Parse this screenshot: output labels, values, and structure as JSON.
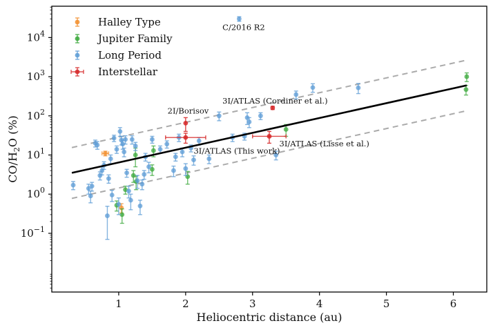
{
  "chart_data": {
    "type": "scatter",
    "xlabel": "Heliocentric distance (au)",
    "ylabel": {
      "pre": "CO/H",
      "sub": "2",
      "post": "O (%)"
    },
    "xlim": [
      0.0,
      6.5
    ],
    "ylim_log10": [
      -2.5,
      4.8
    ],
    "yscale": "log",
    "xticks": [
      1,
      2,
      3,
      4,
      5,
      6
    ],
    "yticks": [
      {
        "exp": -1,
        "base": "10",
        "label": "−1"
      },
      {
        "exp": 0,
        "base": "10",
        "label": "0"
      },
      {
        "exp": 1,
        "base": "10",
        "label": "1"
      },
      {
        "exp": 2,
        "base": "10",
        "label": "2"
      },
      {
        "exp": 3,
        "base": "10",
        "label": "3"
      },
      {
        "exp": 4,
        "base": "10",
        "label": "4"
      }
    ],
    "legend_position": "top-left",
    "series": [
      {
        "name": "Halley Type",
        "color": "#f28e2b",
        "points": [
          [
            0.8,
            11.0,
            1.5,
            0.05
          ],
          [
            1.04,
            0.45,
            0.12,
            0.0
          ]
        ]
      },
      {
        "name": "Jupiter Family",
        "color": "#3aa83a",
        "points": [
          [
            0.97,
            0.52,
            0.15,
            0.0
          ],
          [
            1.05,
            0.3,
            0.12,
            0.0
          ],
          [
            1.1,
            1.3,
            0.3,
            0.0
          ],
          [
            1.22,
            3.0,
            1.0,
            0.0
          ],
          [
            1.25,
            10.0,
            5.0,
            0.0
          ],
          [
            1.26,
            2.1,
            0.8,
            0.0
          ],
          [
            1.5,
            4.3,
            1.3,
            0.0
          ],
          [
            1.52,
            13.0,
            4.0,
            0.0
          ],
          [
            2.03,
            2.8,
            1.0,
            0.0
          ],
          [
            3.5,
            45.0,
            15.0,
            0.0
          ],
          [
            6.2,
            1000.0,
            250.0,
            0.0
          ],
          [
            6.19,
            470.0,
            130.0,
            0.0
          ]
        ]
      },
      {
        "name": "Long Period",
        "color": "#5b9bd5",
        "points": [
          [
            0.32,
            1.7,
            0.4,
            0.0
          ],
          [
            0.55,
            1.4,
            0.4,
            0.0
          ],
          [
            0.58,
            0.9,
            0.3,
            0.0
          ],
          [
            0.6,
            1.6,
            0.4,
            0.0
          ],
          [
            0.65,
            20.0,
            4.0,
            0.0
          ],
          [
            0.68,
            18.0,
            4.0,
            0.0
          ],
          [
            0.72,
            3.0,
            0.7,
            0.0
          ],
          [
            0.75,
            4.0,
            0.9,
            0.0
          ],
          [
            0.78,
            5.5,
            1.2,
            0.0
          ],
          [
            0.83,
            0.28,
            0.21,
            0.0
          ],
          [
            0.85,
            2.5,
            0.6,
            0.0
          ],
          [
            0.88,
            8.0,
            2.0,
            0.0
          ],
          [
            0.9,
            0.95,
            0.3,
            0.0
          ],
          [
            0.93,
            27.0,
            5.0,
            0.0
          ],
          [
            0.97,
            14.0,
            3.0,
            0.0
          ],
          [
            1.0,
            0.55,
            0.25,
            0.0
          ],
          [
            1.02,
            40.0,
            10.0,
            0.0
          ],
          [
            1.04,
            24.0,
            6.0,
            0.0
          ],
          [
            1.06,
            19.0,
            5.0,
            0.0
          ],
          [
            1.08,
            12.0,
            3.0,
            0.0
          ],
          [
            1.1,
            25.0,
            6.0,
            0.0
          ],
          [
            1.12,
            3.5,
            0.8,
            0.0
          ],
          [
            1.15,
            1.2,
            0.4,
            0.0
          ],
          [
            1.18,
            0.7,
            0.3,
            0.0
          ],
          [
            1.2,
            25.0,
            6.0,
            0.0
          ],
          [
            1.25,
            17.0,
            4.0,
            0.0
          ],
          [
            1.28,
            2.2,
            0.8,
            0.0
          ],
          [
            1.32,
            0.5,
            0.2,
            0.0
          ],
          [
            1.35,
            1.8,
            0.5,
            0.0
          ],
          [
            1.38,
            3.2,
            0.8,
            0.0
          ],
          [
            1.4,
            9.0,
            2.0,
            0.0
          ],
          [
            1.45,
            5.0,
            1.5,
            0.0
          ],
          [
            1.5,
            25.0,
            5.0,
            0.0
          ],
          [
            1.62,
            14.0,
            3.0,
            0.0
          ],
          [
            1.72,
            19.0,
            4.0,
            0.0
          ],
          [
            1.82,
            4.0,
            1.2,
            0.0
          ],
          [
            1.85,
            9.0,
            2.0,
            0.0
          ],
          [
            1.9,
            28.0,
            6.0,
            0.0
          ],
          [
            1.95,
            12.0,
            3.0,
            0.0
          ],
          [
            2.0,
            4.5,
            1.5,
            0.0
          ],
          [
            2.08,
            15.0,
            3.0,
            0.0
          ],
          [
            2.12,
            7.5,
            2.0,
            0.0
          ],
          [
            2.2,
            23.0,
            5.0,
            0.0
          ],
          [
            2.35,
            8.0,
            2.0,
            0.0
          ],
          [
            2.5,
            100.0,
            25.0,
            0.0
          ],
          [
            2.7,
            28.0,
            6.0,
            0.0
          ],
          [
            2.8,
            30000.0,
            4000.0,
            0.0
          ],
          [
            2.88,
            30.0,
            6.0,
            0.0
          ],
          [
            2.92,
            90.0,
            30.0,
            0.0
          ],
          [
            2.95,
            70.0,
            20.0,
            0.0
          ],
          [
            3.12,
            100.0,
            20.0,
            0.0
          ],
          [
            3.35,
            10.0,
            2.5,
            0.0
          ],
          [
            3.65,
            350.0,
            80.0,
            0.0
          ],
          [
            3.9,
            530.0,
            130.0,
            0.0
          ],
          [
            4.58,
            520.0,
            150.0,
            0.0
          ]
        ]
      },
      {
        "name": "Interstellar",
        "color": "#d62728",
        "points": [
          [
            2.0,
            65.0,
            25.0,
            0.0
          ],
          [
            2.0,
            28.0,
            8.0,
            0.3
          ],
          [
            3.25,
            30.0,
            10.0,
            0.25
          ],
          [
            3.3,
            160.0,
            15.0,
            0.0
          ]
        ]
      }
    ],
    "fit_line": {
      "style": "solid",
      "color": "#000000",
      "points": [
        [
          0.3,
          3.5
        ],
        [
          6.2,
          600.0
        ]
      ]
    },
    "bound_lines": [
      {
        "style": "dashed",
        "color": "#aaaaaa",
        "points": [
          [
            0.3,
            15.5
          ],
          [
            6.2,
            2650.0
          ]
        ]
      },
      {
        "style": "dashed",
        "color": "#aaaaaa",
        "points": [
          [
            0.3,
            0.78
          ],
          [
            6.2,
            135.0
          ]
        ]
      }
    ],
    "annotations": [
      {
        "text": "C/2016 R2",
        "x": 2.55,
        "y": 15500
      },
      {
        "text": "3I/ATLAS (Cordiner et al.)",
        "x": 2.55,
        "y": 205
      },
      {
        "text": "2I/Borisov",
        "x": 1.73,
        "y": 115
      },
      {
        "text": "3I/ATLAS (Lisse et al.)",
        "x": 3.4,
        "y": 16.5
      },
      {
        "text": "3I/ATLAS (This work)",
        "x": 2.12,
        "y": 10.8
      }
    ]
  }
}
